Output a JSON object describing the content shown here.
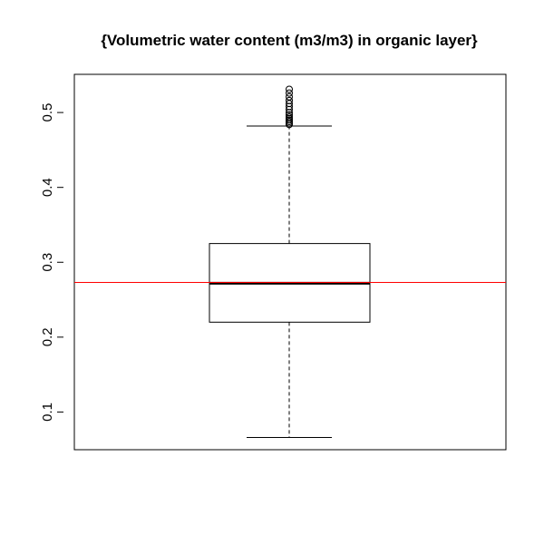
{
  "chart_data": {
    "type": "boxplot",
    "title": "{Volumetric water content (m3/m3) in organic layer}",
    "xlabel": "",
    "ylabel": "",
    "ylim": [
      0.05,
      0.55
    ],
    "yticks": [
      0.1,
      0.2,
      0.3,
      0.4,
      0.5
    ],
    "ytick_labels": [
      "0.1",
      "0.2",
      "0.3",
      "0.4",
      "0.5"
    ],
    "box": {
      "whisker_low": 0.066,
      "q1": 0.22,
      "median": 0.272,
      "q3": 0.325,
      "whisker_high": 0.482
    },
    "outliers": [
      0.484,
      0.486,
      0.488,
      0.49,
      0.492,
      0.494,
      0.497,
      0.5,
      0.504,
      0.508,
      0.512,
      0.516,
      0.521,
      0.526,
      0.531
    ],
    "reference_line": {
      "y": 0.273,
      "color": "#ff0000"
    },
    "box_color": "#000000",
    "grid": false
  }
}
